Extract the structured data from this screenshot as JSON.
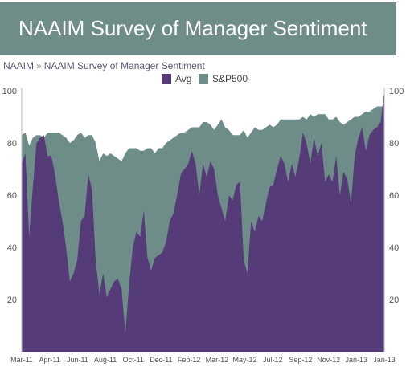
{
  "banner": {
    "title": "NAAIM Survey of Manager Sentiment"
  },
  "breadcrumb": {
    "home": "NAAIM",
    "separator": "»",
    "current": "NAAIM Survey of Manager Sentiment"
  },
  "colors": {
    "banner": "#6e8d89",
    "avg": "#553b78",
    "sp500": "#6e8d89"
  },
  "chart_data": {
    "type": "area",
    "legend": {
      "placement": "top-center"
    },
    "grid": false,
    "ylim": [
      0,
      100
    ],
    "yticks_left": [
      "100",
      "80",
      "60",
      "40",
      "20"
    ],
    "yticks_right": [
      "100",
      "80",
      "60",
      "40",
      "20"
    ],
    "xticks": [
      "Mar-11",
      "Apr-11",
      "Jun-11",
      "Aug-11",
      "Oct-11",
      "Dec-11",
      "Feb-12",
      "Mar-12",
      "May-12",
      "Jul-12",
      "Sep-12",
      "Nov-12",
      "Jan-13",
      "Jan-13"
    ],
    "series": [
      {
        "name": "Avg",
        "color": "#553b78",
        "values": [
          72,
          76,
          44,
          63,
          80,
          82,
          83,
          75,
          75,
          68,
          58,
          50,
          40,
          27,
          30,
          35,
          50,
          52,
          68,
          62,
          35,
          22,
          30,
          21,
          24,
          27,
          28,
          24,
          7,
          25,
          40,
          46,
          44,
          54,
          36,
          31,
          36,
          37,
          38,
          42,
          50,
          53,
          60,
          68,
          70,
          72,
          77,
          72,
          60,
          72,
          67,
          73,
          70,
          60,
          55,
          50,
          60,
          58,
          64,
          65,
          35,
          30,
          50,
          46,
          52,
          50,
          57,
          63,
          64,
          70,
          75,
          72,
          65,
          72,
          67,
          74,
          84,
          80,
          72,
          82,
          75,
          80,
          65,
          68,
          65,
          75,
          60,
          69,
          66,
          57,
          75,
          82,
          86,
          77,
          83,
          85,
          86,
          88,
          100
        ]
      },
      {
        "name": "S&P500",
        "color": "#6e8d89",
        "values": [
          83,
          84,
          79,
          82,
          83,
          83,
          82,
          84,
          84,
          84,
          84,
          83,
          82,
          80,
          81,
          83,
          84,
          82,
          83,
          83,
          80,
          73,
          76,
          75,
          76,
          75,
          74,
          73,
          76,
          78,
          78,
          78,
          77,
          77,
          78,
          78,
          76,
          78,
          78,
          80,
          81,
          82,
          83,
          84,
          84,
          85,
          86,
          86,
          86,
          88,
          88,
          87,
          85,
          87,
          89,
          86,
          85,
          83,
          83,
          83,
          85,
          82,
          84,
          86,
          85,
          85,
          86,
          87,
          86,
          87,
          89,
          89,
          89,
          89,
          89,
          89,
          90,
          89,
          91,
          90,
          91,
          91,
          91,
          89,
          89,
          90,
          88,
          87,
          88,
          89,
          90,
          90,
          91,
          92,
          92,
          93,
          94,
          94,
          94
        ]
      }
    ]
  }
}
